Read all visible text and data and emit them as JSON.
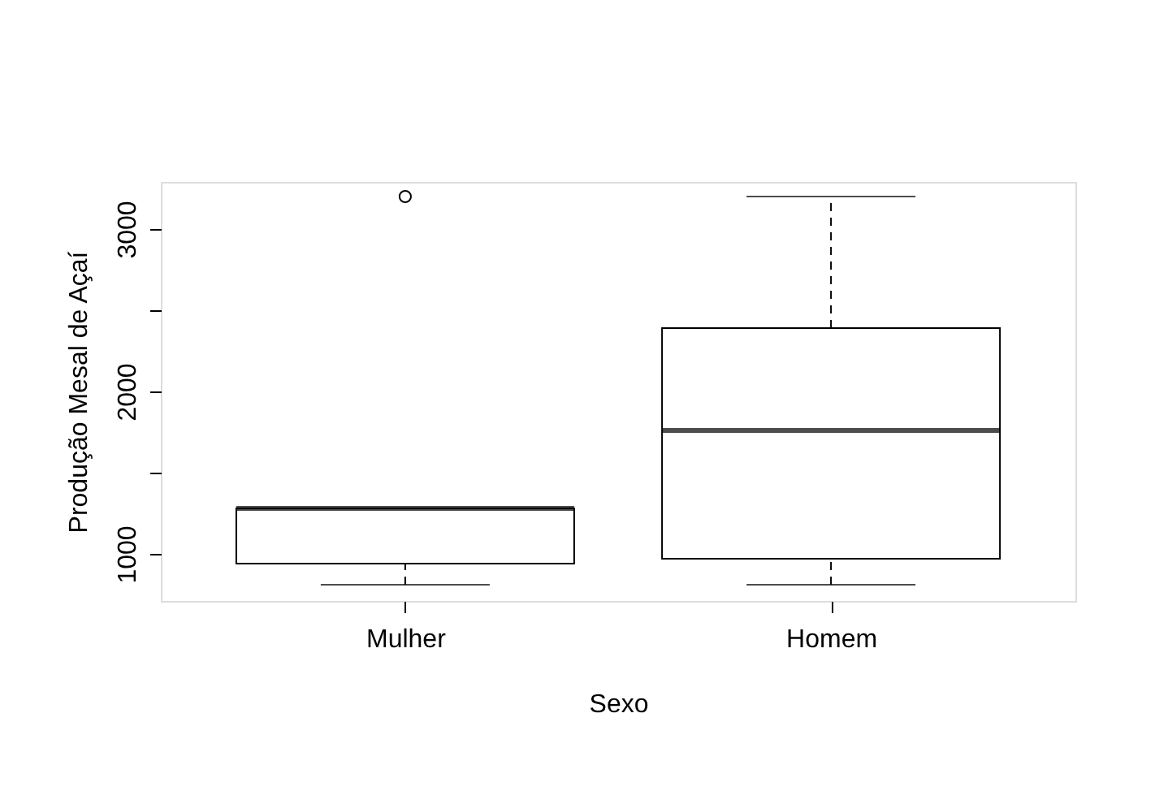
{
  "chart_data": {
    "type": "box",
    "xlabel": "Sexo",
    "ylabel": "Produção Mesal de Açaí",
    "categories": [
      "Mulher",
      "Homem"
    ],
    "boxes": [
      {
        "low": 810,
        "q1": 940,
        "median": 1280,
        "q3": 1280,
        "high": 1280,
        "outliers": [
          3200
        ]
      },
      {
        "low": 810,
        "q1": 970,
        "median": 1760,
        "q3": 2390,
        "high": 3200
      }
    ],
    "ylim": [
      710,
      3290
    ],
    "yticks": [
      1000,
      {
        "value": 1500,
        "label": null
      },
      2000,
      {
        "value": 2500,
        "label": null
      },
      3000
    ],
    "grid": false
  }
}
